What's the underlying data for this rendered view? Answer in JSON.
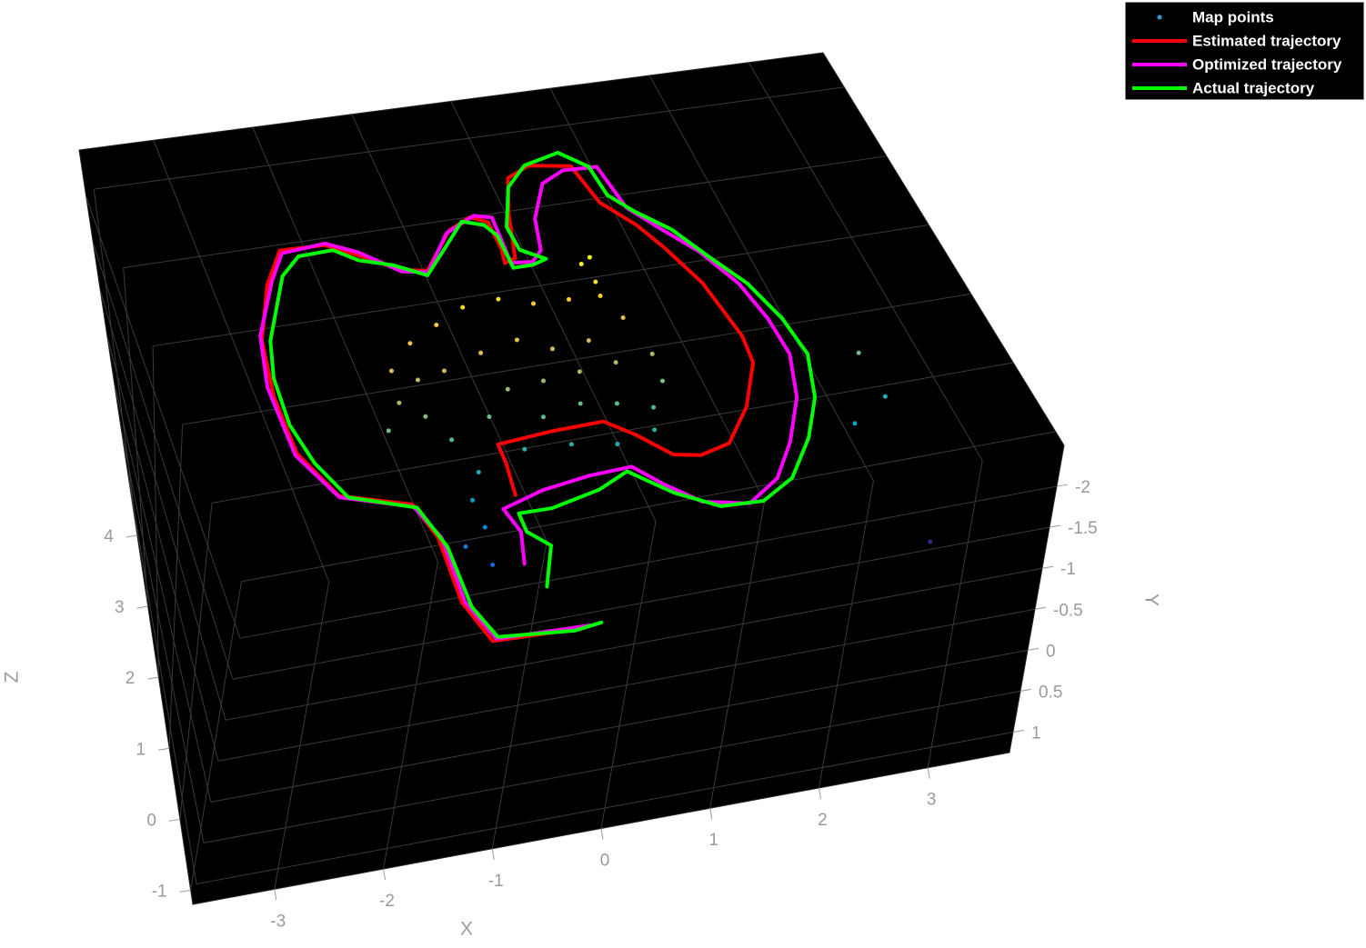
{
  "chart_data": {
    "type": "plot3",
    "xlabel": "X",
    "ylabel": "Y",
    "zlabel": "Z",
    "xlim": [
      -3.75,
      3.75
    ],
    "ylim": [
      -2.5,
      1.25
    ],
    "zlim": [
      -1.2,
      4.5
    ],
    "xticks": [
      -3,
      -2,
      -1,
      0,
      1,
      2,
      3
    ],
    "yticks": [
      -2,
      -1.5,
      -1,
      -0.5,
      0,
      0.5,
      1
    ],
    "zticks": [
      -1,
      0,
      1,
      2,
      3,
      4
    ],
    "grid": true,
    "background": "#000000",
    "legend": "upper right",
    "series": [
      {
        "name": "Map points",
        "mode": "markers",
        "color": "#2f9fd8",
        "colormap": "parula",
        "x": [
          0.91,
          0.96,
          0.63,
          0.28,
          -0.03,
          -0.4,
          -0.72,
          -1.04,
          -1.32,
          -1.37,
          -1.57,
          -1.18,
          -1.03,
          -0.6,
          -0.32,
          0.04,
          0.41,
          0.78,
          1.15,
          1.12,
          0.92,
          0.61,
          0.28,
          -0.11,
          -0.41,
          -0.91,
          -1.07,
          -1.06,
          -1.3,
          -1.13,
          0.03,
          0.44,
          0.83,
          1.05,
          0.63,
          0.26,
          -0.03,
          -0.42,
          -0.83,
          -1.11,
          2.62,
          3.02,
          3.01,
          2.69,
          0.94,
          1.02
        ],
        "y": [
          -1.5,
          -1.5,
          -1.5,
          -1.5,
          -1.5,
          -1.5,
          -1.5,
          -1.5,
          -1.5,
          -1.5,
          -1.5,
          -1.5,
          -1.5,
          -1.5,
          -1.5,
          -1.5,
          -1.5,
          -1.5,
          -1.5,
          -1.5,
          -1.5,
          -1.5,
          -1.5,
          -1.5,
          -1.5,
          -1.5,
          -1.5,
          -1.5,
          -1.5,
          -1.5,
          -1.5,
          -1.5,
          -1.5,
          -1.5,
          -1.5,
          -1.5,
          -1.5,
          -1.5,
          -1.5,
          -1.5,
          -1.5,
          -1.5,
          -1.5,
          -1.5,
          -1.5,
          -1.5
        ],
        "z": [
          3.27,
          3.01,
          2.84,
          2.86,
          2.99,
          2.96,
          2.79,
          2.61,
          2.3,
          1.88,
          1.55,
          1.65,
          1.3,
          1.51,
          1.82,
          1.85,
          1.89,
          1.93,
          1.96,
          1.59,
          1.27,
          1.4,
          1.48,
          1.39,
          1.02,
          0.83,
          0.49,
          0.12,
          -0.08,
          -0.37,
          0.98,
          0.88,
          0.98,
          2.49,
          2.27,
          2.24,
          2.43,
          2.34,
          2.19,
          2.13,
          0.61,
          0.89,
          1.52,
          -1.1,
          2.82,
          3.34
        ]
      },
      {
        "name": "Estimated trajectory",
        "mode": "lines",
        "color": "#ff0000",
        "x": [
          -0.67,
          -0.63,
          -0.63,
          -0.08,
          0.41,
          0.64,
          0.89,
          1.13,
          1.43,
          1.75,
          2.02,
          2.05,
          1.95,
          1.77,
          1.62,
          1.38,
          1.28,
          0.87,
          0.61,
          0.45,
          0.31,
          0.19,
          0.22,
          0.21,
          0.06,
          -0.2,
          -0.58,
          -0.82,
          -1.18,
          -1.47,
          -1.93,
          -2.18,
          -2.43,
          -2.51,
          -2.49,
          -2.25,
          -1.62,
          -1.51,
          -1.53,
          -1.4,
          -0.57
        ],
        "y": [
          -1.5,
          -1.5,
          -1.5,
          -1.5,
          -1.5,
          -1.5,
          -1.5,
          -1.5,
          -1.5,
          -1.5,
          -1.5,
          -1.5,
          -1.5,
          -1.5,
          -1.5,
          -1.5,
          -1.5,
          -1.5,
          -1.5,
          -1.5,
          -1.5,
          -1.5,
          -1.5,
          -1.5,
          -1.5,
          -1.5,
          -1.5,
          -1.5,
          -1.5,
          -1.5,
          -1.5,
          -1.5,
          -1.5,
          -1.5,
          -1.5,
          -1.5,
          -1.5,
          -1.5,
          -1.5,
          -1.5,
          -1.5
        ],
        "z": [
          0.46,
          0.89,
          1.14,
          1.19,
          1.2,
          0.96,
          0.62,
          0.55,
          0.64,
          1.07,
          1.63,
          2.0,
          2.77,
          3.31,
          3.66,
          4.03,
          4.56,
          4.65,
          4.53,
          4.07,
          3.48,
          3.44,
          3.62,
          4.0,
          4.1,
          3.97,
          3.5,
          3.56,
          3.83,
          4.03,
          4.05,
          3.64,
          2.95,
          2.22,
          1.46,
          0.84,
          0.57,
          0.1,
          -0.77,
          -1.33,
          -1.38
        ]
      },
      {
        "name": "Optimized trajectory",
        "mode": "lines",
        "color": "#ff00ff",
        "x": [
          -0.85,
          -0.76,
          -0.83,
          -0.41,
          0.06,
          0.47,
          0.68,
          0.94,
          1.34,
          1.69,
          1.97,
          2.24,
          2.39,
          2.37,
          2.28,
          2.08,
          1.84,
          1.61,
          1.53,
          1.18,
          0.92,
          0.68,
          0.59,
          0.46,
          0.25,
          0.26,
          0.27,
          0.1,
          -0.24,
          -0.58,
          -0.83,
          -1.17,
          -1.46,
          -1.92,
          -2.12,
          -2.43,
          -2.54,
          -2.51,
          -2.25,
          -1.62,
          -1.48,
          -1.5,
          -1.36,
          -0.52
        ],
        "y": [
          -1.5,
          -1.5,
          -1.5,
          -1.5,
          -1.5,
          -1.5,
          -1.5,
          -1.5,
          -1.5,
          -1.5,
          -1.5,
          -1.5,
          -1.5,
          -1.5,
          -1.5,
          -1.5,
          -1.5,
          -1.5,
          -1.5,
          -1.5,
          -1.5,
          -1.5,
          -1.5,
          -1.5,
          -1.5,
          -1.5,
          -1.5,
          -1.5,
          -1.5,
          -1.5,
          -1.5,
          -1.5,
          -1.5,
          -1.5,
          -1.5,
          -1.5,
          -1.5,
          -1.5,
          -1.5,
          -1.5,
          -1.5,
          -1.5,
          -1.5,
          -1.5
        ],
        "z": [
          -0.43,
          -0.02,
          0.31,
          0.46,
          0.54,
          0.56,
          0.26,
          -0.05,
          -0.18,
          0.08,
          0.52,
          1.08,
          1.66,
          2.17,
          2.69,
          3.18,
          3.55,
          3.91,
          4.5,
          4.52,
          4.39,
          3.95,
          3.53,
          3.4,
          3.43,
          3.74,
          4.05,
          4.11,
          3.94,
          3.48,
          3.54,
          3.87,
          4.05,
          4.01,
          3.68,
          3.01,
          2.35,
          1.44,
          0.82,
          0.54,
          0.09,
          -0.78,
          -1.31,
          -1.36
        ]
      },
      {
        "name": "Actual trajectory",
        "mode": "lines",
        "color": "#00ff00",
        "x": [
          -0.74,
          -0.55,
          -0.71,
          -0.71,
          -0.4,
          0.09,
          0.41,
          0.73,
          1.08,
          1.47,
          1.82,
          2.15,
          2.4,
          2.55,
          2.5,
          2.36,
          2.14,
          1.93,
          1.67,
          1.49,
          1.45,
          1.22,
          0.83,
          0.57,
          0.37,
          0.39,
          0.6,
          0.45,
          0.25,
          0.24,
          0.16,
          -0.04,
          -0.32,
          -0.6,
          -0.89,
          -1.2,
          -1.41,
          -1.77,
          -2.0,
          -2.35,
          -2.45,
          -2.46,
          -2.36,
          -2.17,
          -1.59,
          -1.46,
          -1.46,
          -1.34,
          -0.66,
          -0.41
        ],
        "y": [
          -1.5,
          -1.5,
          -1.5,
          -1.5,
          -1.5,
          -1.5,
          -1.5,
          -1.5,
          -1.5,
          -1.5,
          -1.5,
          -1.5,
          -1.5,
          -1.5,
          -1.5,
          -1.5,
          -1.5,
          -1.5,
          -1.5,
          -1.5,
          -1.5,
          -1.5,
          -1.5,
          -1.5,
          -1.5,
          -1.5,
          -1.5,
          -1.5,
          -1.5,
          -1.5,
          -1.5,
          -1.5,
          -1.5,
          -1.5,
          -1.5,
          -1.5,
          -1.5,
          -1.5,
          -1.5,
          -1.5,
          -1.5,
          -1.5,
          -1.5,
          -1.5,
          -1.5,
          -1.5,
          -1.5,
          -1.5,
          -1.5,
          -1.5
        ],
        "z": [
          -0.77,
          -0.26,
          -0.03,
          0.22,
          0.21,
          0.34,
          0.51,
          0.13,
          -0.15,
          -0.18,
          0.05,
          0.53,
          1.04,
          1.62,
          2.14,
          2.67,
          3.1,
          3.53,
          3.84,
          4.11,
          4.52,
          4.76,
          4.66,
          4.41,
          3.9,
          3.58,
          3.41,
          3.36,
          3.36,
          3.81,
          3.97,
          4.06,
          3.75,
          3.44,
          3.64,
          3.77,
          3.95,
          3.94,
          3.72,
          2.93,
          2.45,
          1.83,
          1.3,
          0.8,
          0.52,
          -0.04,
          -0.85,
          -1.29,
          -1.39,
          -1.35
        ]
      }
    ]
  }
}
